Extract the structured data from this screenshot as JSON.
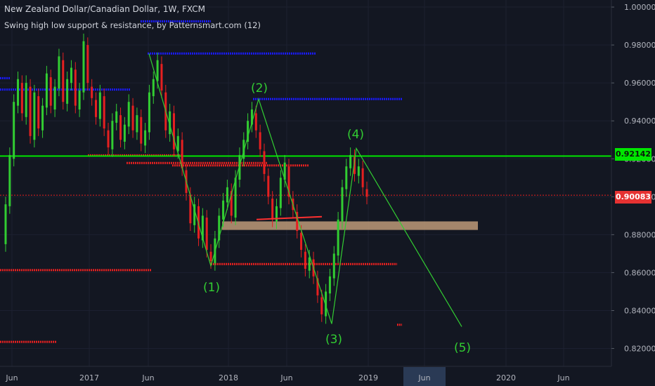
{
  "header": {
    "title": "New Zealand Dollar/Canadian Dollar, 1W, FXCM",
    "indicator": "Swing high low support & resistance, by Patternsmart.com (12)"
  },
  "price_tags": {
    "current": "0.90083",
    "resistance": "0.92142"
  },
  "colors": {
    "background": "#131722",
    "up_candle": "#32cd32",
    "down_candle": "#e62020",
    "resistance_line": "#00e600",
    "support_dots": "#e62020",
    "swing_high_lines": "#1a1aff",
    "wave_label": "#32cd32",
    "zone": "#c9a27e"
  },
  "chart_data": {
    "type": "candlestick",
    "symbol": "New Zealand Dollar/Canadian Dollar",
    "interval": "1W",
    "source": "FXCM",
    "y_axis": {
      "ticks": [
        "1.00000",
        "0.98000",
        "0.96000",
        "0.94000",
        "0.92000",
        "0.90000",
        "0.88000",
        "0.86000",
        "0.84000",
        "0.82000"
      ],
      "range": [
        0.8165,
        1.0015
      ]
    },
    "x_axis": {
      "ticks": [
        "Jun",
        "2017",
        "Jun",
        "2018",
        "Jun",
        "2019",
        "Jun",
        "2020",
        "Jun"
      ],
      "highlighted_tick": "Jun"
    },
    "current_price": 0.90083,
    "horizontal_resistance": 0.92142,
    "elliott_wave": [
      {
        "label": "(1)",
        "price": 0.8635
      },
      {
        "label": "(2)",
        "price": 0.9515
      },
      {
        "label": "(3)",
        "price": 0.833
      },
      {
        "label": "(4)",
        "price": 0.9255
      },
      {
        "label": "(5)",
        "price": 0.8315
      }
    ],
    "demand_zone": [
      0.8825,
      0.887
    ],
    "swing_high_levels": [
      0.9925,
      0.9755,
      0.9565,
      0.9515,
      0.9625
    ],
    "swing_low_levels": [
      0.9218,
      0.9178,
      0.9165,
      0.8645,
      0.8613,
      0.8235,
      0.8325
    ],
    "candles": [
      [
        0.875,
        0.896
      ],
      [
        0.895,
        0.922
      ],
      [
        0.92,
        0.95
      ],
      [
        0.948,
        0.962
      ],
      [
        0.96,
        0.944
      ],
      [
        0.942,
        0.96
      ],
      [
        0.958,
        0.932
      ],
      [
        0.93,
        0.955
      ],
      [
        0.953,
        0.936
      ],
      [
        0.935,
        0.948
      ],
      [
        0.947,
        0.965
      ],
      [
        0.963,
        0.948
      ],
      [
        0.946,
        0.958
      ],
      [
        0.957,
        0.974
      ],
      [
        0.972,
        0.95
      ],
      [
        0.949,
        0.962
      ],
      [
        0.96,
        0.968
      ],
      [
        0.967,
        0.948
      ],
      [
        0.946,
        0.956
      ],
      [
        0.955,
        0.982
      ],
      [
        0.98,
        0.96
      ],
      [
        0.958,
        0.952
      ],
      [
        0.951,
        0.942
      ],
      [
        0.941,
        0.955
      ],
      [
        0.953,
        0.936
      ],
      [
        0.935,
        0.926
      ],
      [
        0.925,
        0.94
      ],
      [
        0.939,
        0.945
      ],
      [
        0.943,
        0.93
      ],
      [
        0.929,
        0.938
      ],
      [
        0.937,
        0.95
      ],
      [
        0.948,
        0.935
      ],
      [
        0.934,
        0.943
      ],
      [
        0.942,
        0.928
      ],
      [
        0.927,
        0.935
      ],
      [
        0.934,
        0.955
      ],
      [
        0.953,
        0.962
      ],
      [
        0.961,
        0.972
      ],
      [
        0.97,
        0.956
      ],
      [
        0.955,
        0.935
      ],
      [
        0.933,
        0.945
      ],
      [
        0.944,
        0.925
      ],
      [
        0.924,
        0.932
      ],
      [
        0.93,
        0.915
      ],
      [
        0.914,
        0.902
      ],
      [
        0.901,
        0.886
      ],
      [
        0.885,
        0.896
      ],
      [
        0.895,
        0.878
      ],
      [
        0.877,
        0.89
      ],
      [
        0.889,
        0.872
      ],
      [
        0.871,
        0.866
      ],
      [
        0.865,
        0.878
      ],
      [
        0.877,
        0.89
      ],
      [
        0.888,
        0.898
      ],
      [
        0.897,
        0.905
      ],
      [
        0.903,
        0.89
      ],
      [
        0.889,
        0.91
      ],
      [
        0.909,
        0.922
      ],
      [
        0.92,
        0.93
      ],
      [
        0.929,
        0.94
      ],
      [
        0.938,
        0.946
      ],
      [
        0.944,
        0.935
      ],
      [
        0.934,
        0.925
      ],
      [
        0.924,
        0.912
      ],
      [
        0.911,
        0.9
      ],
      [
        0.899,
        0.888
      ],
      [
        0.887,
        0.895
      ],
      [
        0.894,
        0.91
      ],
      [
        0.909,
        0.918
      ],
      [
        0.916,
        0.9
      ],
      [
        0.899,
        0.893
      ],
      [
        0.892,
        0.882
      ],
      [
        0.881,
        0.872
      ],
      [
        0.871,
        0.862
      ],
      [
        0.861,
        0.868
      ],
      [
        0.867,
        0.858
      ],
      [
        0.857,
        0.848
      ],
      [
        0.847,
        0.838
      ],
      [
        0.837,
        0.85
      ],
      [
        0.849,
        0.858
      ],
      [
        0.857,
        0.87
      ],
      [
        0.869,
        0.888
      ],
      [
        0.887,
        0.905
      ],
      [
        0.904,
        0.916
      ],
      [
        0.915,
        0.922
      ],
      [
        0.921,
        0.912
      ],
      [
        0.911,
        0.916
      ],
      [
        0.915,
        0.905
      ],
      [
        0.904,
        0.9
      ]
    ]
  }
}
